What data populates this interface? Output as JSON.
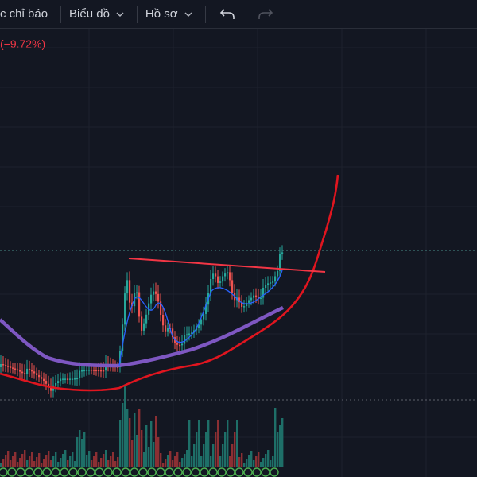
{
  "toolbar": {
    "indicators_label": "c chỉ báo",
    "chart_label": "Biểu đồ",
    "profile_label": "Hồ sơ",
    "undo_icon": "undo-icon",
    "redo_icon": "redo-icon"
  },
  "legend": {
    "change_pct": "(−9.72%)"
  },
  "colors": {
    "background": "#131722",
    "up": "#26a69a",
    "down": "#ef5350",
    "ma_short": "#2962ff",
    "ma_mid": "#7e57c2",
    "ma_long": "#e0151f",
    "trendline": "#f23645",
    "change_negative": "#f23645"
  }
}
